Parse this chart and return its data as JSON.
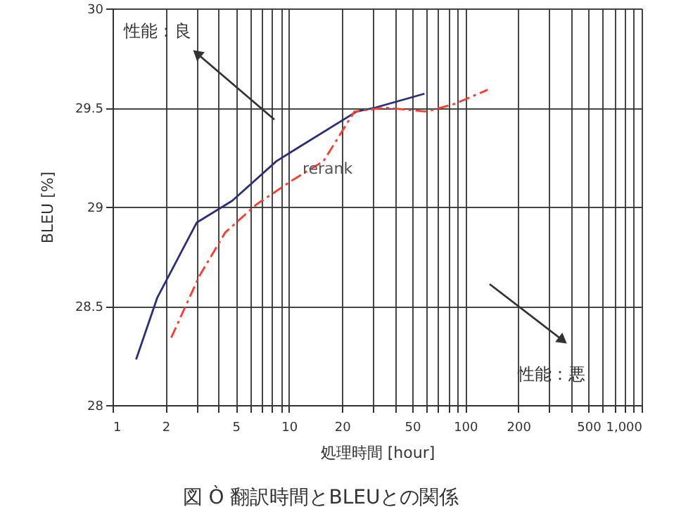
{
  "chart_data": {
    "type": "line",
    "xlabel": "処理時間 [hour]",
    "ylabel": "BLEU [%]",
    "annotations": [
      "性能：良",
      "性能：悪",
      "図 Ò 翻訳時間とBLEUとの関係"
    ],
    "log": "x",
    "grid": true,
    "legend": false,
    "marker": "none",
    "xlim": [
      1,
      1000
    ],
    "ylim": [
      28,
      30
    ],
    "xticks": [
      1,
      2,
      {
        "value": 3,
        "label": null
      },
      {
        "value": 4,
        "label": null
      },
      5,
      {
        "value": 6,
        "label": null
      },
      {
        "value": 7,
        "label": null
      },
      {
        "value": 8,
        "label": null
      },
      {
        "value": 9,
        "label": null
      },
      10,
      20,
      {
        "value": 30,
        "label": null
      },
      {
        "value": 40,
        "label": null
      },
      50,
      {
        "value": 60,
        "label": null
      },
      {
        "value": 70,
        "label": null
      },
      {
        "value": 80,
        "label": null
      },
      {
        "value": 90,
        "label": null
      },
      100,
      200,
      {
        "value": 300,
        "label": null
      },
      {
        "value": 400,
        "label": null
      },
      500,
      {
        "value": 600,
        "label": null
      },
      {
        "value": 700,
        "label": null
      },
      {
        "value": 800,
        "label": null
      },
      {
        "value": 900,
        "label": null
      },
      {
        "value": 1000,
        "label": "1,000"
      }
    ],
    "yticks": [
      28,
      28.5,
      29,
      29.5,
      30
    ],
    "series": [
      {
        "color": "#2b2f7a",
        "line_style": "solid",
        "x": [
          1.36,
          1.79,
          3.0,
          4.77,
          8.5,
          10.9,
          24.2,
          30.9,
          58.7
        ],
        "values": [
          28.23,
          28.54,
          28.92,
          29.03,
          29.23,
          29.29,
          29.48,
          29.5,
          29.57
        ]
      },
      {
        "name": "rerank",
        "color": "#ff3b2f",
        "line_style": "dashed",
        "x": [
          2.15,
          3.1,
          4.35,
          6.5,
          10.3,
          15.7,
          23.5,
          35,
          60.5,
          87.8,
          134
        ],
        "values": [
          28.34,
          28.65,
          28.87,
          29.01,
          29.13,
          29.23,
          29.48,
          29.5,
          29.48,
          29.52,
          29.59
        ]
      }
    ]
  }
}
